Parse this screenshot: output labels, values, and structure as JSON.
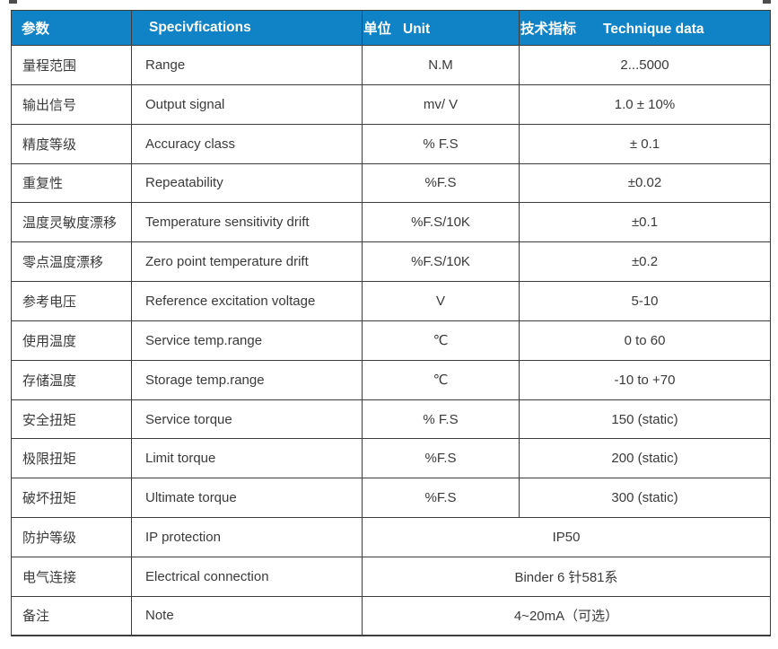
{
  "accent_color": "#1082c6",
  "border_color": "#3d3d3d",
  "text_color": "#3a3a3a",
  "table": {
    "header": {
      "param_cn": "参数",
      "spec": "Specivfications",
      "unit_cn": "单位",
      "unit_en": "Unit",
      "tech_cn": "技术指标",
      "tech_en": "Technique data"
    },
    "rows": [
      {
        "param": "量程范围",
        "spec": "Range",
        "unit": "N.M",
        "value": "2...5000"
      },
      {
        "param": "输出信号",
        "spec": "Output signal",
        "unit": "mv/ V",
        "value": "1.0 ± 10%"
      },
      {
        "param": "精度等级",
        "spec": "Accuracy class",
        "unit": "% F.S",
        "value": "± 0.1"
      },
      {
        "param": "重复性",
        "spec": "Repeatability",
        "unit": "%F.S",
        "value": "±0.02"
      },
      {
        "param": "温度灵敏度漂移",
        "spec": "Temperature sensitivity drift",
        "unit": "%F.S/10K",
        "value": "±0.1"
      },
      {
        "param": "零点温度漂移",
        "spec": "Zero point temperature drift",
        "unit": "%F.S/10K",
        "value": "±0.2"
      },
      {
        "param": "参考电压",
        "spec": "Reference excitation voltage",
        "unit": "V",
        "value": "5-10"
      },
      {
        "param": "使用温度",
        "spec": "Service temp.range",
        "unit": "℃",
        "value": "0 to 60"
      },
      {
        "param": "存储温度",
        "spec": "Storage temp.range",
        "unit": "℃",
        "value": "-10 to +70"
      },
      {
        "param": "安全扭矩",
        "spec": "Service torque",
        "unit": "% F.S",
        "value": "150 (static)"
      },
      {
        "param": "极限扭矩",
        "spec": "Limit torque",
        "unit": "%F.S",
        "value": "200 (static)"
      },
      {
        "param": "破坏扭矩",
        "spec": "Ultimate torque",
        "unit": "%F.S",
        "value": "300 (static)"
      },
      {
        "param": "防护等级",
        "spec": "IP protection",
        "merged": true,
        "value": "IP50"
      },
      {
        "param": "电气连接",
        "spec": "Electrical connection",
        "merged": true,
        "value": "Binder 6 针581系"
      },
      {
        "param": "备注",
        "spec": "Note",
        "merged": true,
        "value": "4~20mA（可选）"
      }
    ]
  }
}
